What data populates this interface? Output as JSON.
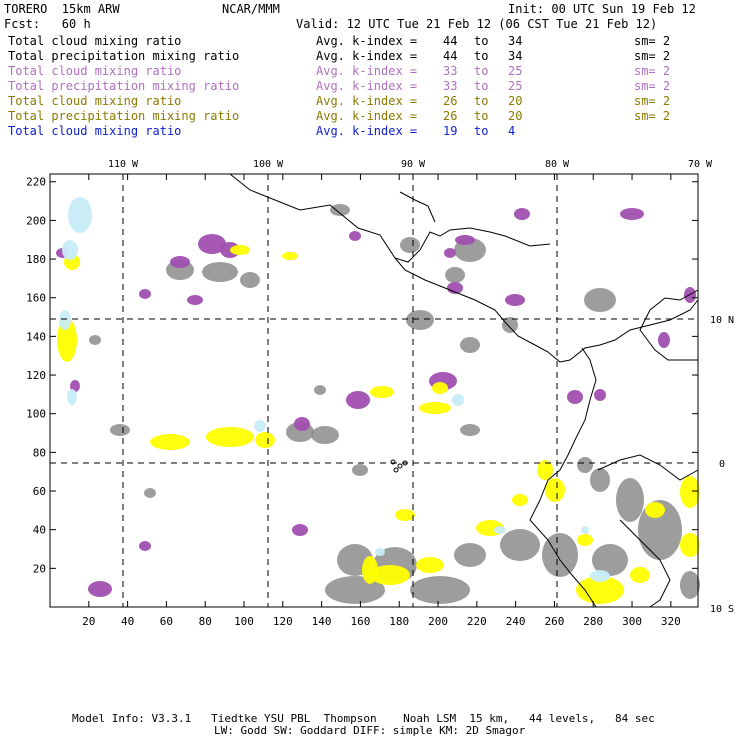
{
  "header": {
    "model": "TORERO  15km ARW",
    "org": "NCAR/MMM",
    "init": "Init: 00 UTC Sun 19 Feb 12",
    "fcst": "Fcst:   60 h",
    "valid": "Valid: 12 UTC Tue 21 Feb 12 (06 CST Tue 21 Feb 12)"
  },
  "legend": [
    {
      "field": "Total cloud mixing ratio",
      "stat": "Avg. k-index =",
      "hi": "44",
      "to": "to",
      "lo": "34",
      "sm": "sm= 2",
      "color": "#000000"
    },
    {
      "field": "Total precipitation mixing ratio",
      "stat": "Avg. k-index =",
      "hi": "44",
      "to": "to",
      "lo": "34",
      "sm": "sm= 2",
      "color": "#000000"
    },
    {
      "field": "Total cloud mixing ratio",
      "stat": "Avg. k-index =",
      "hi": "33",
      "to": "to",
      "lo": "25",
      "sm": "sm= 2",
      "color": "#b070c0"
    },
    {
      "field": "Total precipitation mixing ratio",
      "stat": "Avg. k-index =",
      "hi": "33",
      "to": "to",
      "lo": "25",
      "sm": "sm= 2",
      "color": "#b070c0"
    },
    {
      "field": "Total cloud mixing ratio",
      "stat": "Avg. k-index =",
      "hi": "26",
      "to": "to",
      "lo": "20",
      "sm": "sm= 2",
      "color": "#8a7a00"
    },
    {
      "field": "Total precipitation mixing ratio",
      "stat": "Avg. k-index =",
      "hi": "26",
      "to": "to",
      "lo": "20",
      "sm": "sm= 2",
      "color": "#8a7a00"
    },
    {
      "field": "Total cloud mixing ratio",
      "stat": "Avg. k-index =",
      "hi": "19",
      "to": "to",
      "lo": "4",
      "sm": "",
      "color": "#1020d0"
    }
  ],
  "map": {
    "lon_labels": [
      "110 W",
      "100 W",
      "90 W",
      "80 W",
      "70 W"
    ],
    "lat_labels": [
      "10 N",
      "0",
      "10 S"
    ],
    "x_ticks": [
      "20",
      "40",
      "60",
      "80",
      "100",
      "120",
      "140",
      "160",
      "180",
      "200",
      "220",
      "240",
      "260",
      "280",
      "300",
      "320"
    ],
    "y_ticks": [
      "20",
      "40",
      "60",
      "80",
      "100",
      "120",
      "140",
      "160",
      "180",
      "200",
      "220"
    ],
    "colors": {
      "gray": "#8c8c8c",
      "purple": "#a050b0",
      "yellow": "#ffff00",
      "lightblue": "#c8ecf8"
    }
  },
  "footer": {
    "line1": "Model Info: V3.3.1   Tiedtke YSU PBL  Thompson    Noah LSM  15 km,   44 levels,   84 sec",
    "line2": "LW: Godd SW: Goddard DIFF: simple KM: 2D Smagor"
  }
}
